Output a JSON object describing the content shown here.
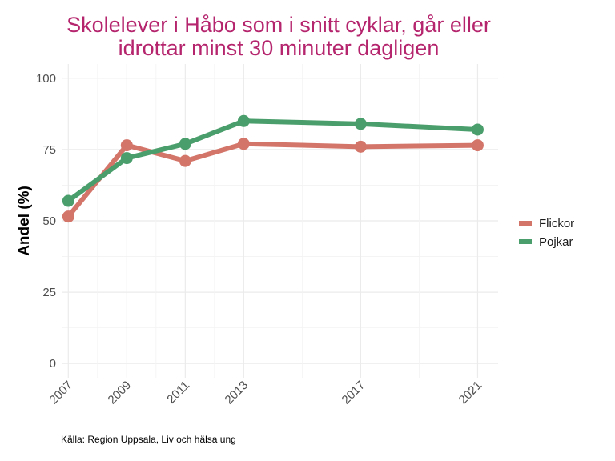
{
  "chart_data": {
    "type": "line",
    "title": "Skolelever i Håbo som i snitt cyklar, går eller idrottar minst 30 minuter dagligen",
    "title_lines": [
      "Skolelever i Håbo som i snitt cyklar, går eller",
      "idrottar minst 30 minuter dagligen"
    ],
    "xlabel": "",
    "ylabel": "Andel (%)",
    "x": [
      2007,
      2009,
      2011,
      2013,
      2017,
      2021
    ],
    "x_tick_labels": [
      "2007",
      "2009",
      "2011",
      "2013",
      "2017",
      "2021"
    ],
    "xlim": [
      2006.8,
      2021.7
    ],
    "ylim": [
      0,
      100
    ],
    "y_ticks": [
      0,
      25,
      50,
      75,
      100
    ],
    "grid": true,
    "legend_position": "right",
    "series": [
      {
        "name": "Flickor",
        "color": "#d4756a",
        "values": [
          51.5,
          76.5,
          71,
          77,
          76,
          76.5
        ]
      },
      {
        "name": "Pojkar",
        "color": "#4a9e6b",
        "values": [
          57,
          72,
          77,
          85,
          84,
          82
        ]
      }
    ],
    "caption": "Källa: Region Uppsala, Liv och hälsa ung"
  }
}
